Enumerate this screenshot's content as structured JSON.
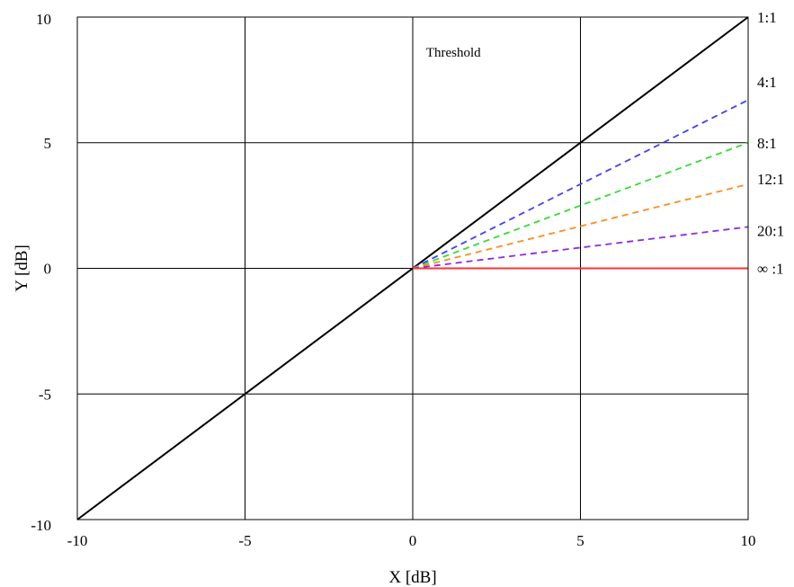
{
  "chart_data": {
    "type": "line",
    "title": "",
    "xlabel": "X [dB]",
    "ylabel": "Y [dB]",
    "xlim": [
      -10,
      10
    ],
    "ylim": [
      -10,
      10
    ],
    "xticks": [
      -10,
      -5,
      0,
      5,
      10
    ],
    "yticks": [
      -10,
      -5,
      0,
      5,
      10
    ],
    "xtick_labels": [
      "-10",
      "-5",
      "0",
      "5",
      "10"
    ],
    "ytick_labels": [
      "-10",
      "-5",
      "0",
      "5",
      "10"
    ],
    "grid": true,
    "annotation": {
      "text": "Threshold",
      "x": 0.8,
      "y": 8.6
    },
    "series": [
      {
        "name": "1:1",
        "style": "solid",
        "color": "#000000",
        "x": [
          -10,
          10
        ],
        "y": [
          -10,
          10
        ]
      },
      {
        "name": "4:1",
        "style": "dashed",
        "color": "#3f3fff",
        "x": [
          0,
          10
        ],
        "y": [
          0,
          6.7
        ]
      },
      {
        "name": "8:1",
        "style": "dashed",
        "color": "#33dd33",
        "x": [
          0,
          10
        ],
        "y": [
          0,
          5.0
        ]
      },
      {
        "name": "12:1",
        "style": "dashed",
        "color": "#ff8c1a",
        "x": [
          0,
          10
        ],
        "y": [
          0,
          3.35
        ]
      },
      {
        "name": "20:1",
        "style": "dashed",
        "color": "#8a2be2",
        "x": [
          0,
          10
        ],
        "y": [
          0,
          1.65
        ]
      },
      {
        "name": "∞ :1",
        "style": "solid",
        "color": "#ff3333",
        "x": [
          0,
          10
        ],
        "y": [
          0,
          0
        ]
      }
    ]
  }
}
